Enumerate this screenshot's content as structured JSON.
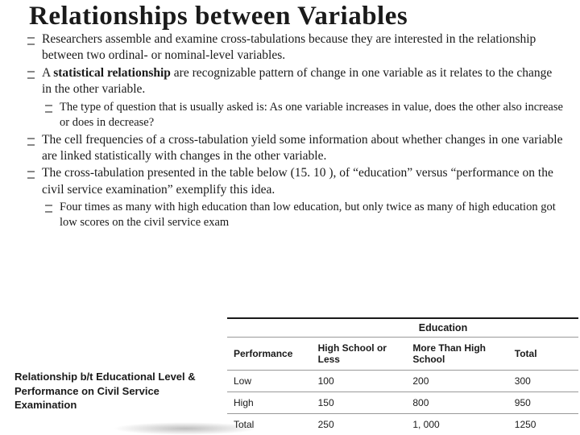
{
  "title": "Relationships between Variables",
  "bullets": {
    "b1": "Researchers assemble and examine cross-tabulations because they are interested in the relationship between two ordinal- or nominal-level variables.",
    "b2_pre": "A ",
    "b2_bold": "statistical relationship",
    "b2_post": " are recognizable pattern of change in one variable as it relates to the change in the other variable.",
    "s1": "The type of question that is usually asked is: As one variable increases in value, does the other also increase or does in decrease?",
    "b3": "The cell frequencies of a cross-tabulation yield some information about whether changes in one variable are linked statistically with changes in the other variable.",
    "b4": "The cross-tabulation presented in the table below (15. 10 ), of “education” versus “performance on the civil service examination” exemplify this idea.",
    "s2": "Four times as many with high education than low education, but only twice as many of high education got low scores on the civil service exam"
  },
  "caption": "Relationship b/t Educational Level & Performance on Civil Service Examination",
  "table": {
    "super_header": "Education",
    "columns": {
      "perf": "Performance",
      "a": "High School or Less",
      "b": "More Than High School",
      "c": "Total"
    },
    "rows": [
      {
        "label": "Low",
        "a": "100",
        "b": "200",
        "c": "300"
      },
      {
        "label": "High",
        "a": "150",
        "b": "800",
        "c": "950"
      },
      {
        "label": "Total",
        "a": "250",
        "b": "1, 000",
        "c": "1250"
      }
    ]
  }
}
